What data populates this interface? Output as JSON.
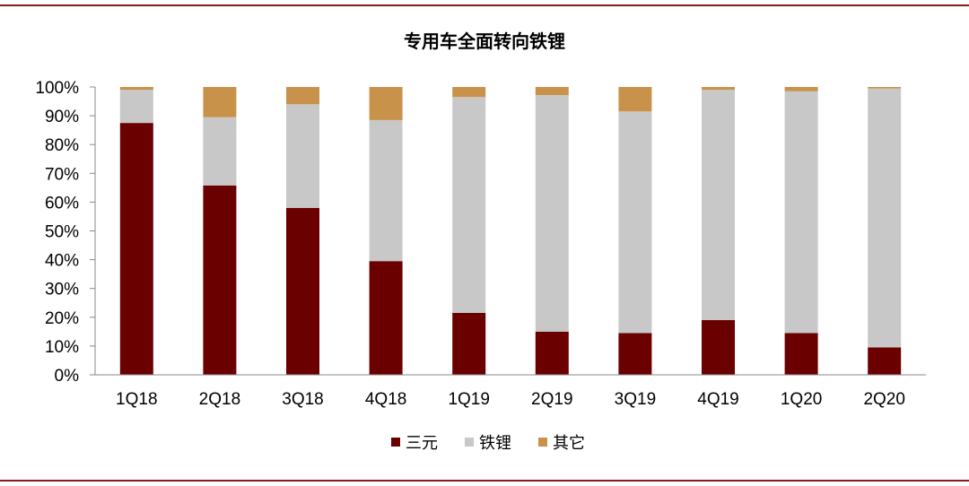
{
  "chart_data": {
    "type": "bar",
    "stacked": true,
    "percent": true,
    "title": "专用车全面转向铁锂",
    "categories": [
      "1Q18",
      "2Q18",
      "3Q18",
      "4Q18",
      "1Q19",
      "2Q19",
      "3Q19",
      "4Q19",
      "1Q20",
      "2Q20"
    ],
    "series": [
      {
        "name": "三元",
        "color": "#6b0000",
        "values": [
          87.5,
          65.8,
          58.0,
          39.5,
          21.5,
          15.0,
          14.5,
          19.0,
          14.5,
          9.5
        ]
      },
      {
        "name": "铁锂",
        "color": "#c8c8c8",
        "values": [
          11.5,
          23.7,
          36.0,
          49.0,
          75.0,
          82.2,
          77.0,
          80.0,
          84.0,
          90.0
        ]
      },
      {
        "name": "其它",
        "color": "#c8924b",
        "values": [
          1.0,
          10.5,
          6.0,
          11.5,
          3.5,
          2.8,
          8.5,
          1.0,
          1.5,
          0.5
        ]
      }
    ],
    "yticks": [
      "0%",
      "10%",
      "20%",
      "30%",
      "40%",
      "50%",
      "60%",
      "70%",
      "80%",
      "90%",
      "100%"
    ],
    "ylim": [
      0,
      100
    ],
    "xlabel": "",
    "ylabel": "",
    "legend": "bottom",
    "grid": false
  },
  "frame_color": "#8b1a1a"
}
